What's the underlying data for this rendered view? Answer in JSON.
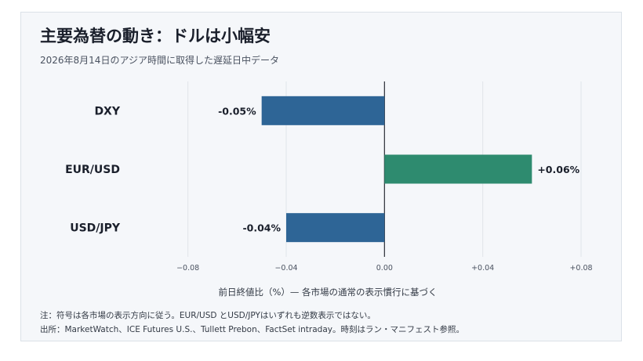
{
  "title": "主要為替の動き：ドルは小幅安",
  "subtitle": "2026年8月14日のアジア時間に取得した遅延日中データ",
  "notes": {
    "line1": "注：符号は各市場の表示方向に従う。EUR/USD とUSD/JPYはいずれも逆数表示ではない。",
    "line2": "出所：MarketWatch、ICE Futures U.S.、Tullett Prebon、FactSet intraday。時刻はラン・マニフェスト参照。"
  },
  "chart_data": {
    "type": "bar",
    "orientation": "horizontal",
    "categories": [
      "DXY",
      "EUR/USD",
      "USD/JPY"
    ],
    "values": [
      -0.05,
      0.06,
      -0.04
    ],
    "value_labels": [
      "-0.05%",
      "+0.06%",
      "-0.04%"
    ],
    "xlabel": "前日終値比（%）— 各市場の通常の表示慣行に基づく",
    "xlim": [
      -0.1,
      0.08
    ],
    "xticks": [
      -0.08,
      -0.04,
      0.0,
      0.04,
      0.08
    ],
    "xtick_labels": [
      "−0.08",
      "−0.04",
      "0.00",
      "+0.04",
      "+0.08"
    ],
    "grid": true,
    "colors": {
      "negative": "#2e6596",
      "positive": "#2e8b6f"
    }
  }
}
